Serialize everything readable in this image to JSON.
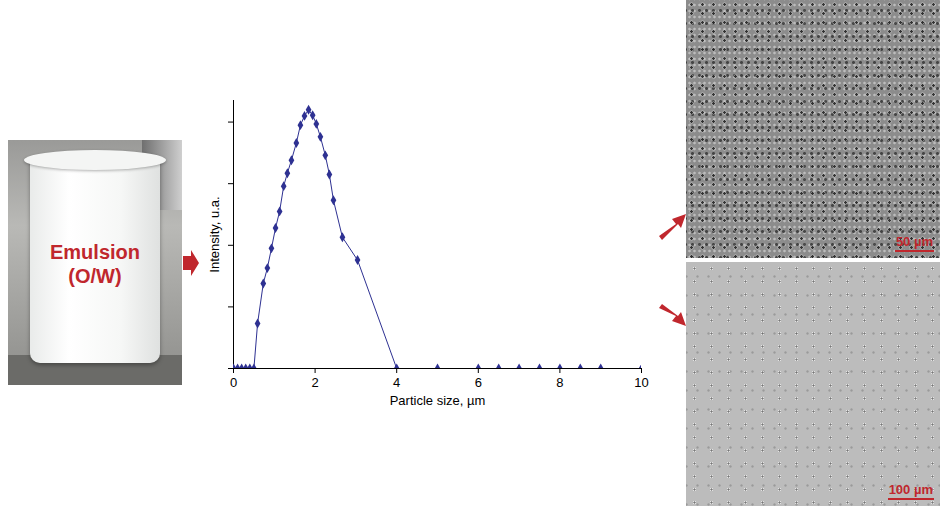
{
  "photo": {
    "label": "Emulsion (O/W)"
  },
  "micrographs": [
    {
      "scale_bar": "50 µm"
    },
    {
      "scale_bar": "100 µm"
    }
  ],
  "chart_data": {
    "type": "line",
    "x_label": "Particle size, µm",
    "y_label": "Intensity, u.a.",
    "x": [
      0,
      0.1,
      0.2,
      0.3,
      0.4,
      0.5,
      0.59,
      0.73,
      0.83,
      0.93,
      1.03,
      1.13,
      1.23,
      1.32,
      1.42,
      1.54,
      1.64,
      1.74,
      1.84,
      1.94,
      2.03,
      2.13,
      2.25,
      2.35,
      2.45,
      2.67,
      3.04,
      4,
      5,
      6,
      6.5,
      7,
      7.5,
      8,
      8.5,
      9,
      10
    ],
    "values": [
      0,
      0,
      0,
      0,
      0,
      0,
      0.73,
      1.38,
      1.63,
      1.95,
      2.28,
      2.55,
      2.96,
      3.17,
      3.38,
      3.66,
      3.95,
      4.1,
      4.2,
      4.11,
      3.97,
      3.76,
      3.46,
      3.15,
      2.73,
      2.13,
      1.76,
      0,
      0,
      0,
      0,
      0,
      0,
      0,
      0,
      0,
      0
    ],
    "color": "#2e3192",
    "marker": "diamond",
    "xlim": [
      0,
      10
    ],
    "xticks": [
      0,
      2,
      4,
      6,
      8,
      10
    ],
    "ylim": [
      0,
      4.35
    ],
    "yticks": [
      0,
      1,
      2,
      3,
      4
    ],
    "tick_labels": "x",
    "grid": false
  }
}
